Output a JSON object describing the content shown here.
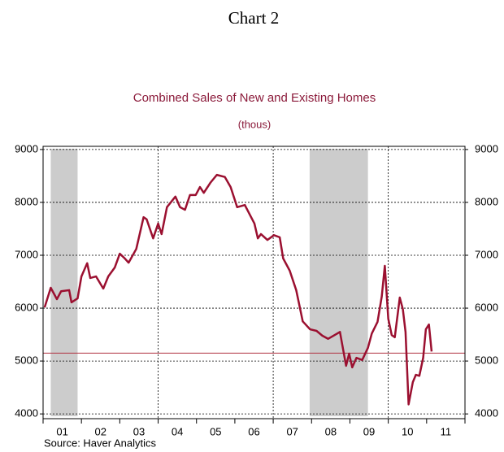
{
  "chart_data": {
    "type": "line",
    "title": "Chart 2",
    "subtitle": "Combined Sales of New and Existing Homes",
    "unit_label": "(thous)",
    "source": "Source: Haver Analytics",
    "xlim": [
      2001,
      2012
    ],
    "ylim": [
      3910,
      9060
    ],
    "yticks": [
      4000,
      5000,
      6000,
      7000,
      8000,
      9000
    ],
    "xticks": [
      {
        "value": 2001.5,
        "label": "01"
      },
      {
        "value": 2002.5,
        "label": "02"
      },
      {
        "value": 2003.5,
        "label": "03"
      },
      {
        "value": 2004.5,
        "label": "04"
      },
      {
        "value": 2005.5,
        "label": "05"
      },
      {
        "value": 2006.5,
        "label": "06"
      },
      {
        "value": 2007.5,
        "label": "07"
      },
      {
        "value": 2008.5,
        "label": "08"
      },
      {
        "value": 2009.5,
        "label": "09"
      },
      {
        "value": 2010.5,
        "label": "10"
      },
      {
        "value": 2011.5,
        "label": "11"
      }
    ],
    "x_boundaries": [
      2001,
      2002,
      2003,
      2004,
      2005,
      2006,
      2007,
      2008,
      2009,
      2010,
      2011,
      2012
    ],
    "xgrid": [
      2004,
      2007,
      2010
    ],
    "grid": true,
    "shaded": [
      [
        2001.2,
        2001.9
      ],
      [
        2007.95,
        2009.47
      ]
    ],
    "shade_color": "#cccccc",
    "reference_line": 5150,
    "reference_color": "#b03040",
    "series": [
      {
        "name": "Combined Sales",
        "color": "#9b1030",
        "x": [
          2001.04,
          2001.2,
          2001.36,
          2001.47,
          2001.68,
          2001.74,
          2001.9,
          2002.0,
          2002.15,
          2002.23,
          2002.38,
          2002.57,
          2002.7,
          2002.87,
          2003.0,
          2003.13,
          2003.23,
          2003.43,
          2003.62,
          2003.7,
          2003.87,
          2004.0,
          2004.09,
          2004.23,
          2004.45,
          2004.57,
          2004.7,
          2004.83,
          2004.98,
          2005.09,
          2005.19,
          2005.36,
          2005.53,
          2005.74,
          2005.89,
          2006.06,
          2006.26,
          2006.51,
          2006.6,
          2006.68,
          2006.85,
          2007.02,
          2007.17,
          2007.26,
          2007.43,
          2007.6,
          2007.77,
          2007.96,
          2008.13,
          2008.28,
          2008.43,
          2008.6,
          2008.74,
          2008.9,
          2008.98,
          2009.06,
          2009.17,
          2009.32,
          2009.47,
          2009.57,
          2009.72,
          2009.83,
          2009.91,
          2010.0,
          2010.09,
          2010.17,
          2010.3,
          2010.38,
          2010.45,
          2010.53,
          2010.64,
          2010.72,
          2010.81,
          2010.91,
          2010.98,
          2011.06,
          2011.13
        ],
        "values": [
          6015,
          6385,
          6170,
          6320,
          6340,
          6110,
          6185,
          6600,
          6850,
          6570,
          6600,
          6370,
          6600,
          6770,
          7030,
          6940,
          6860,
          7120,
          7720,
          7680,
          7320,
          7600,
          7400,
          7910,
          8110,
          7910,
          7860,
          8140,
          8140,
          8290,
          8180,
          8370,
          8520,
          8480,
          8290,
          7910,
          7950,
          7600,
          7320,
          7400,
          7290,
          7380,
          7340,
          6940,
          6710,
          6340,
          5750,
          5600,
          5570,
          5480,
          5420,
          5490,
          5550,
          4910,
          5140,
          4880,
          5060,
          5020,
          5250,
          5520,
          5740,
          6220,
          6800,
          5800,
          5490,
          5450,
          6200,
          5980,
          5550,
          4180,
          4600,
          4740,
          4720,
          5060,
          5600,
          5690,
          5180
        ]
      }
    ]
  }
}
